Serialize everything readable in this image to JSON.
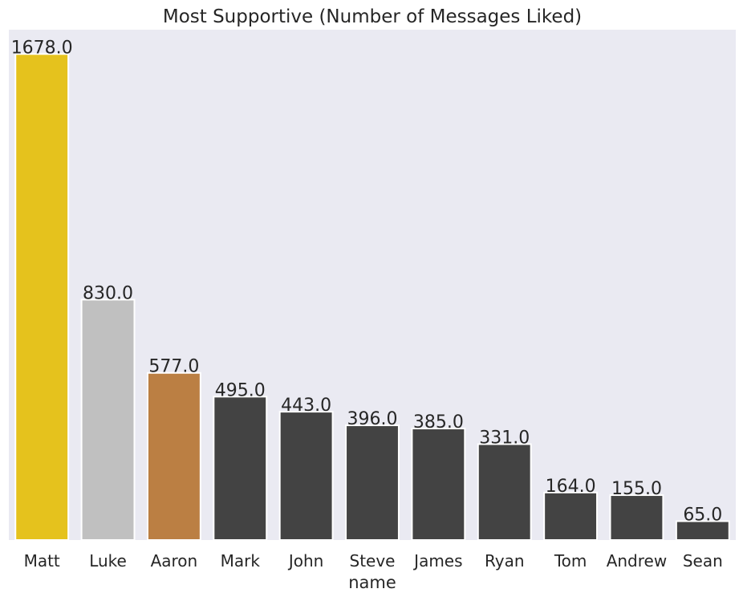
{
  "chart_data": {
    "type": "bar",
    "title": "Most Supportive (Number of Messages Liked)",
    "xlabel": "name",
    "ylabel": "",
    "categories": [
      "Matt",
      "Luke",
      "Aaron",
      "Mark",
      "John",
      "Steve",
      "James",
      "Ryan",
      "Tom",
      "Andrew",
      "Sean"
    ],
    "values": [
      1678,
      830,
      577,
      495,
      443,
      396,
      385,
      331,
      164,
      155,
      65
    ],
    "value_labels": [
      "1678.0",
      "830.0",
      "577.0",
      "495.0",
      "443.0",
      "396.0",
      "385.0",
      "331.0",
      "164.0",
      "155.0",
      "65.0"
    ],
    "bar_colors": [
      "#e5c21d",
      "#c0c0c0",
      "#bb7f43",
      "#434343",
      "#434343",
      "#434343",
      "#434343",
      "#434343",
      "#434343",
      "#434343",
      "#434343"
    ],
    "ylim": [
      0,
      1762
    ],
    "grid": false,
    "background_color": "#eaeaf2"
  }
}
